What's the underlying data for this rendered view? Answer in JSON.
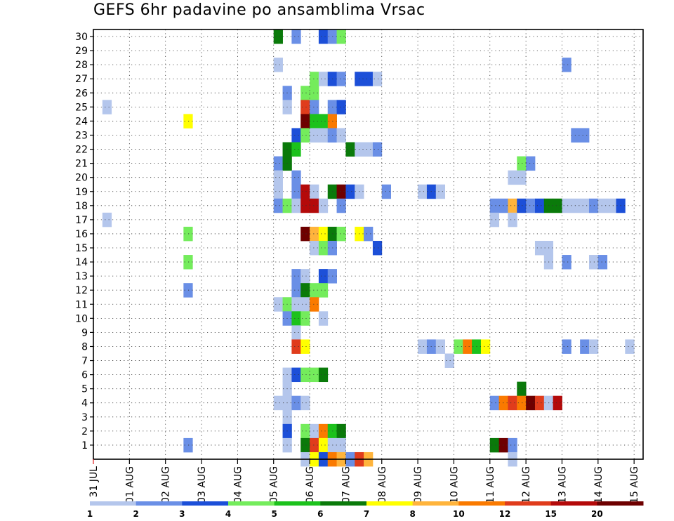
{
  "chart_data": {
    "type": "heatmap",
    "title": "GEFS 6hr padavine po ansamblima Vrsac",
    "xlabel": "",
    "ylabel": "",
    "x_tick_labels": [
      "31 JUL",
      "01 AUG",
      "02 AUG",
      "03 AUG",
      "04 AUG",
      "05 AUG",
      "06 AUG",
      "07 AUG",
      "08 AUG",
      "09 AUG",
      "10 AUG",
      "11 AUG",
      "12 AUG",
      "13 AUG",
      "14 AUG",
      "15 AUG"
    ],
    "y_tick_labels": [
      "1",
      "2",
      "3",
      "4",
      "5",
      "6",
      "7",
      "8",
      "9",
      "10",
      "11",
      "12",
      "13",
      "14",
      "15",
      "16",
      "17",
      "18",
      "19",
      "20",
      "21",
      "22",
      "23",
      "24",
      "25",
      "26",
      "27",
      "28",
      "29",
      "30"
    ],
    "grid": true,
    "colorbar": {
      "position": "bottom",
      "labels": [
        "1",
        "2",
        "3",
        "4",
        "5",
        "6",
        "7",
        "8",
        "10",
        "12",
        "15",
        "20"
      ],
      "colors": [
        "#b4c6ec",
        "#6a8fe6",
        "#1c4fd8",
        "#74ec5c",
        "#1cc21c",
        "#0a7a0a",
        "#ffff00",
        "#ffb43c",
        "#fa7a00",
        "#e03c1c",
        "#b40a0a",
        "#6e0000"
      ]
    },
    "steps_per_day": 4,
    "cells": [
      [
        30,
        20,
        5
      ],
      [
        30,
        22,
        1
      ],
      [
        30,
        25,
        2
      ],
      [
        30,
        26,
        1
      ],
      [
        30,
        27,
        3
      ],
      [
        28,
        20,
        0
      ],
      [
        28,
        52,
        1
      ],
      [
        27,
        24,
        3
      ],
      [
        27,
        25,
        0
      ],
      [
        27,
        26,
        2
      ],
      [
        27,
        27,
        1
      ],
      [
        27,
        29,
        2
      ],
      [
        27,
        30,
        2
      ],
      [
        27,
        31,
        0
      ],
      [
        26,
        21,
        1
      ],
      [
        26,
        23,
        3
      ],
      [
        26,
        24,
        3
      ],
      [
        25,
        1,
        0
      ],
      [
        25,
        21,
        0
      ],
      [
        25,
        23,
        9
      ],
      [
        25,
        24,
        1
      ],
      [
        25,
        26,
        1
      ],
      [
        25,
        27,
        2
      ],
      [
        24,
        10,
        6
      ],
      [
        24,
        23,
        11
      ],
      [
        24,
        24,
        4
      ],
      [
        24,
        25,
        4
      ],
      [
        24,
        26,
        8
      ],
      [
        23,
        22,
        2
      ],
      [
        23,
        23,
        3
      ],
      [
        23,
        24,
        0
      ],
      [
        23,
        25,
        0
      ],
      [
        23,
        26,
        1
      ],
      [
        23,
        27,
        0
      ],
      [
        23,
        53,
        1
      ],
      [
        23,
        54,
        1
      ],
      [
        22,
        21,
        5
      ],
      [
        22,
        22,
        4
      ],
      [
        22,
        28,
        5
      ],
      [
        22,
        29,
        0
      ],
      [
        22,
        30,
        0
      ],
      [
        22,
        31,
        1
      ],
      [
        21,
        20,
        1
      ],
      [
        21,
        21,
        5
      ],
      [
        21,
        47,
        3
      ],
      [
        21,
        48,
        1
      ],
      [
        20,
        20,
        0
      ],
      [
        20,
        22,
        1
      ],
      [
        20,
        46,
        0
      ],
      [
        20,
        47,
        0
      ],
      [
        19,
        20,
        0
      ],
      [
        19,
        22,
        1
      ],
      [
        19,
        23,
        10
      ],
      [
        19,
        24,
        0
      ],
      [
        19,
        26,
        5
      ],
      [
        19,
        27,
        11
      ],
      [
        19,
        28,
        2
      ],
      [
        19,
        29,
        0
      ],
      [
        19,
        32,
        1
      ],
      [
        19,
        36,
        0
      ],
      [
        19,
        37,
        2
      ],
      [
        19,
        38,
        0
      ],
      [
        18,
        20,
        1
      ],
      [
        18,
        21,
        3
      ],
      [
        18,
        22,
        0
      ],
      [
        18,
        23,
        10
      ],
      [
        18,
        24,
        10
      ],
      [
        18,
        25,
        0
      ],
      [
        18,
        27,
        1
      ],
      [
        18,
        44,
        1
      ],
      [
        18,
        45,
        1
      ],
      [
        18,
        46,
        7
      ],
      [
        18,
        47,
        2
      ],
      [
        18,
        48,
        1
      ],
      [
        18,
        49,
        2
      ],
      [
        18,
        50,
        5
      ],
      [
        18,
        51,
        5
      ],
      [
        18,
        52,
        0
      ],
      [
        18,
        53,
        0
      ],
      [
        18,
        54,
        0
      ],
      [
        18,
        55,
        1
      ],
      [
        18,
        56,
        0
      ],
      [
        18,
        57,
        0
      ],
      [
        18,
        58,
        2
      ],
      [
        17,
        1,
        0
      ],
      [
        17,
        44,
        0
      ],
      [
        17,
        46,
        0
      ],
      [
        16,
        10,
        3
      ],
      [
        16,
        23,
        11
      ],
      [
        16,
        24,
        7
      ],
      [
        16,
        25,
        6
      ],
      [
        16,
        26,
        5
      ],
      [
        16,
        27,
        3
      ],
      [
        16,
        29,
        6
      ],
      [
        16,
        30,
        1
      ],
      [
        15,
        24,
        0
      ],
      [
        15,
        25,
        3
      ],
      [
        15,
        26,
        1
      ],
      [
        15,
        31,
        2
      ],
      [
        15,
        49,
        0
      ],
      [
        15,
        50,
        0
      ],
      [
        14,
        10,
        3
      ],
      [
        14,
        50,
        0
      ],
      [
        14,
        52,
        1
      ],
      [
        14,
        55,
        0
      ],
      [
        14,
        56,
        1
      ],
      [
        13,
        22,
        1
      ],
      [
        13,
        23,
        0
      ],
      [
        13,
        25,
        2
      ],
      [
        13,
        26,
        1
      ],
      [
        12,
        10,
        1
      ],
      [
        12,
        22,
        1
      ],
      [
        12,
        23,
        5
      ],
      [
        12,
        24,
        3
      ],
      [
        12,
        25,
        3
      ],
      [
        11,
        20,
        0
      ],
      [
        11,
        21,
        3
      ],
      [
        11,
        22,
        0
      ],
      [
        11,
        23,
        0
      ],
      [
        11,
        24,
        8
      ],
      [
        10,
        21,
        1
      ],
      [
        10,
        22,
        4
      ],
      [
        10,
        23,
        3
      ],
      [
        10,
        25,
        0
      ],
      [
        9,
        22,
        0
      ],
      [
        8,
        22,
        9
      ],
      [
        8,
        23,
        6
      ],
      [
        8,
        36,
        0
      ],
      [
        8,
        37,
        1
      ],
      [
        8,
        38,
        0
      ],
      [
        8,
        40,
        3
      ],
      [
        8,
        41,
        8
      ],
      [
        8,
        42,
        4
      ],
      [
        8,
        43,
        6
      ],
      [
        8,
        52,
        1
      ],
      [
        8,
        54,
        1
      ],
      [
        8,
        55,
        0
      ],
      [
        8,
        59,
        0
      ],
      [
        7,
        39,
        0
      ],
      [
        6,
        21,
        0
      ],
      [
        6,
        22,
        2
      ],
      [
        6,
        23,
        3
      ],
      [
        6,
        24,
        3
      ],
      [
        6,
        25,
        5
      ],
      [
        5,
        21,
        0
      ],
      [
        5,
        47,
        5
      ],
      [
        4,
        20,
        0
      ],
      [
        4,
        21,
        0
      ],
      [
        4,
        22,
        1
      ],
      [
        4,
        23,
        0
      ],
      [
        4,
        44,
        1
      ],
      [
        4,
        45,
        8
      ],
      [
        4,
        46,
        9
      ],
      [
        4,
        47,
        8
      ],
      [
        4,
        48,
        11
      ],
      [
        4,
        49,
        9
      ],
      [
        4,
        50,
        0
      ],
      [
        4,
        51,
        10
      ],
      [
        3,
        21,
        0
      ],
      [
        2,
        21,
        2
      ],
      [
        2,
        23,
        3
      ],
      [
        2,
        24,
        0
      ],
      [
        2,
        25,
        8
      ],
      [
        2,
        26,
        4
      ],
      [
        2,
        27,
        5
      ],
      [
        1,
        10,
        1
      ],
      [
        1,
        21,
        0
      ],
      [
        1,
        23,
        5
      ],
      [
        1,
        24,
        9
      ],
      [
        1,
        25,
        6
      ],
      [
        1,
        26,
        0
      ],
      [
        1,
        27,
        0
      ],
      [
        1,
        44,
        5
      ],
      [
        1,
        45,
        11
      ],
      [
        1,
        46,
        1
      ],
      [
        0,
        23,
        0
      ],
      [
        0,
        24,
        6
      ],
      [
        0,
        25,
        2
      ],
      [
        0,
        26,
        8
      ],
      [
        0,
        27,
        7
      ],
      [
        0,
        28,
        1
      ],
      [
        0,
        29,
        9
      ],
      [
        0,
        30,
        7
      ],
      [
        0,
        46,
        0
      ]
    ]
  }
}
